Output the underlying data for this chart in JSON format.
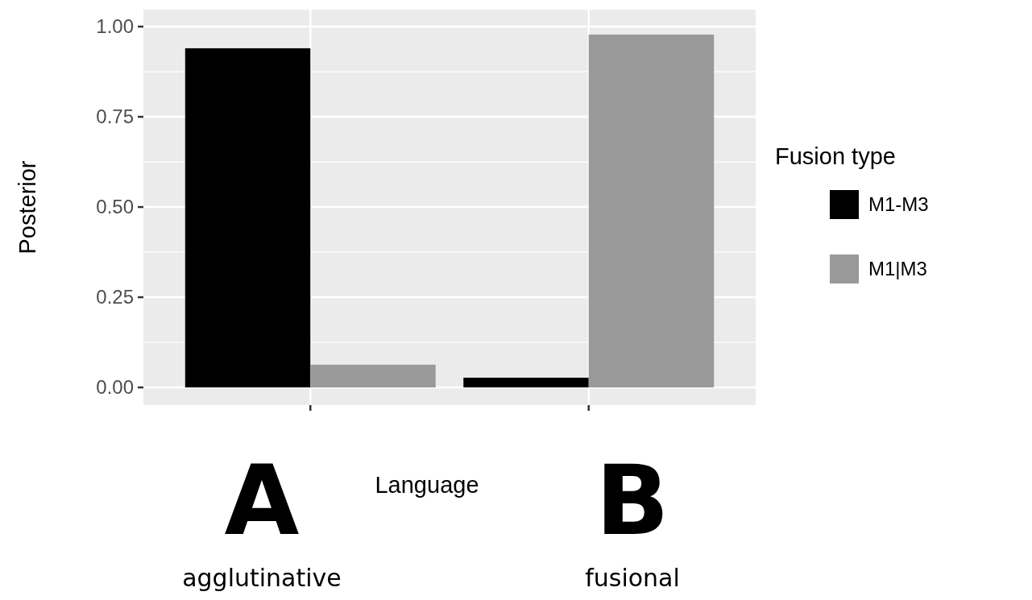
{
  "chart_data": {
    "type": "bar",
    "categories": [
      null,
      null
    ],
    "xlabel": "Language",
    "ylabel": "Posterior",
    "legend_title": "Fusion type",
    "series": [
      {
        "name": "M1-M3",
        "color": "#000000",
        "values": [
          0.94,
          0.027
        ]
      },
      {
        "name": "M1|M3",
        "color": "#999999",
        "values": [
          0.063,
          0.978
        ]
      }
    ],
    "ylim": [
      -0.049,
      1.047
    ],
    "yticks": [
      {
        "value": 0,
        "label": "0.00"
      },
      {
        "value": 0.25,
        "label": "0.25"
      },
      {
        "value": 0.5,
        "label": "0.50"
      },
      {
        "value": 0.75,
        "label": "0.75"
      },
      {
        "value": 1,
        "label": "1.00"
      }
    ],
    "grid": true,
    "legend": "right",
    "annotations": [
      "A",
      "B",
      "agglutinative",
      "fusional"
    ]
  }
}
